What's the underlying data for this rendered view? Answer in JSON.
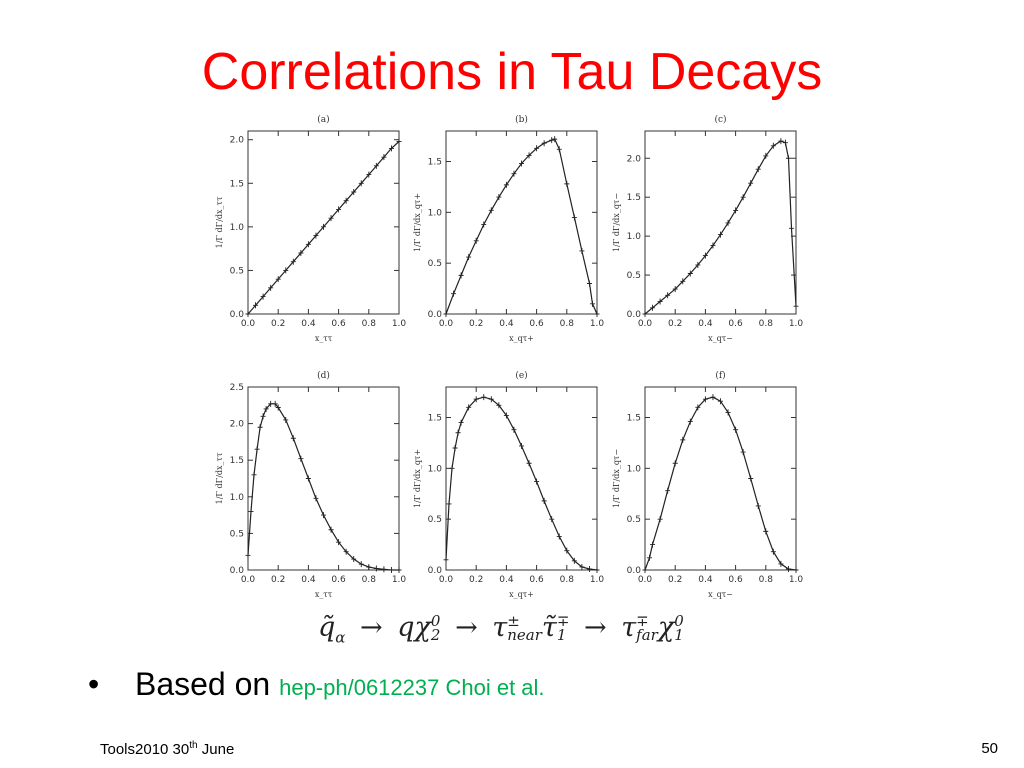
{
  "slide": {
    "title": "Correlations in Tau Decays",
    "bullet_marker": "•",
    "bullet_text": "Based on",
    "reference": "hep-ph/0612237 Choi et al.",
    "footer_prefix": "Tools2010 30",
    "footer_sup": "th",
    "footer_suffix": " June",
    "page_number": "50",
    "formula": {
      "q_tilde": "q̃",
      "alpha": "α",
      "arrow": "→",
      "q": "q",
      "chi": "χ",
      "chi2_sup": "0",
      "chi2_sub": "2",
      "tau": "τ",
      "near_sup": "±",
      "near_sub": "near",
      "stau": "τ̃",
      "stau_sup": "∓",
      "stau_sub": "1",
      "far_sup": "∓",
      "far_sub": "far",
      "chi1_sup": "0",
      "chi1_sub": "1"
    }
  },
  "chart_data": [
    {
      "type": "line",
      "panel": "(a)",
      "xlabel": "x_ττ",
      "ylabel": "1/Γ dΓ/dx_ττ",
      "xlim": [
        0,
        1.0
      ],
      "ylim": [
        0,
        2.1
      ],
      "xticks": [
        "0.0",
        "0.2",
        "0.4",
        "0.6",
        "0.8",
        "1.0"
      ],
      "yticks": [
        "0.0",
        "0.5",
        "1.0",
        "1.5",
        "2.0"
      ],
      "x": [
        0.0,
        0.05,
        0.1,
        0.15,
        0.2,
        0.25,
        0.3,
        0.35,
        0.4,
        0.45,
        0.5,
        0.55,
        0.6,
        0.65,
        0.7,
        0.75,
        0.8,
        0.85,
        0.9,
        0.95,
        1.0
      ],
      "y": [
        0.0,
        0.1,
        0.2,
        0.3,
        0.4,
        0.5,
        0.6,
        0.7,
        0.8,
        0.9,
        1.0,
        1.1,
        1.2,
        1.3,
        1.4,
        1.5,
        1.6,
        1.7,
        1.8,
        1.9,
        1.98
      ]
    },
    {
      "type": "line",
      "panel": "(b)",
      "xlabel": "x_qτ+",
      "ylabel": "1/Γ dΓ/dx_qτ+",
      "xlim": [
        0,
        1.0
      ],
      "ylim": [
        0,
        1.8
      ],
      "xticks": [
        "0.0",
        "0.2",
        "0.4",
        "0.6",
        "0.8",
        "1.0"
      ],
      "yticks": [
        "0.0",
        "0.5",
        "1.0",
        "1.5"
      ],
      "x": [
        0.0,
        0.05,
        0.1,
        0.15,
        0.2,
        0.25,
        0.3,
        0.35,
        0.4,
        0.45,
        0.5,
        0.55,
        0.6,
        0.65,
        0.7,
        0.72,
        0.75,
        0.8,
        0.85,
        0.9,
        0.95,
        0.97,
        1.0
      ],
      "y": [
        0.0,
        0.2,
        0.38,
        0.56,
        0.72,
        0.88,
        1.02,
        1.15,
        1.27,
        1.38,
        1.48,
        1.56,
        1.63,
        1.68,
        1.71,
        1.72,
        1.62,
        1.28,
        0.95,
        0.62,
        0.3,
        0.1,
        0.0
      ]
    },
    {
      "type": "line",
      "panel": "(c)",
      "xlabel": "x_qτ−",
      "ylabel": "1/Γ dΓ/dx_qτ−",
      "xlim": [
        0,
        1.0
      ],
      "ylim": [
        0,
        2.35
      ],
      "xticks": [
        "0.0",
        "0.2",
        "0.4",
        "0.6",
        "0.8",
        "1.0"
      ],
      "yticks": [
        "0.0",
        "0.5",
        "1.0",
        "1.5",
        "2.0"
      ],
      "x": [
        0.0,
        0.05,
        0.1,
        0.15,
        0.2,
        0.25,
        0.3,
        0.35,
        0.4,
        0.45,
        0.5,
        0.55,
        0.6,
        0.65,
        0.7,
        0.75,
        0.8,
        0.85,
        0.9,
        0.93,
        0.95,
        0.97,
        1.0
      ],
      "y": [
        0.0,
        0.08,
        0.16,
        0.24,
        0.32,
        0.42,
        0.52,
        0.63,
        0.75,
        0.88,
        1.02,
        1.17,
        1.33,
        1.5,
        1.68,
        1.86,
        2.03,
        2.16,
        2.22,
        2.2,
        2.0,
        1.1,
        0.1
      ]
    },
    {
      "type": "line",
      "panel": "(d)",
      "xlabel": "x_ττ",
      "ylabel": "1/Γ dΓ/dx_ττ",
      "xlim": [
        0,
        1.0
      ],
      "ylim": [
        0,
        2.5
      ],
      "xticks": [
        "0.0",
        "0.2",
        "0.4",
        "0.6",
        "0.8",
        "1.0"
      ],
      "yticks": [
        "0.0",
        "0.5",
        "1.0",
        "1.5",
        "2.0",
        "2.5"
      ],
      "x": [
        0.0,
        0.02,
        0.04,
        0.06,
        0.08,
        0.1,
        0.12,
        0.15,
        0.18,
        0.2,
        0.25,
        0.3,
        0.35,
        0.4,
        0.45,
        0.5,
        0.55,
        0.6,
        0.65,
        0.7,
        0.75,
        0.8,
        0.85,
        0.9,
        0.95,
        1.0
      ],
      "y": [
        0.2,
        0.8,
        1.3,
        1.65,
        1.95,
        2.1,
        2.2,
        2.27,
        2.27,
        2.22,
        2.05,
        1.8,
        1.52,
        1.25,
        0.98,
        0.75,
        0.55,
        0.38,
        0.25,
        0.15,
        0.08,
        0.04,
        0.02,
        0.01,
        0.0,
        0.0
      ]
    },
    {
      "type": "line",
      "panel": "(e)",
      "xlabel": "x_qτ+",
      "ylabel": "1/Γ dΓ/dx_qτ+",
      "xlim": [
        0,
        1.0
      ],
      "ylim": [
        0,
        1.8
      ],
      "xticks": [
        "0.0",
        "0.2",
        "0.4",
        "0.6",
        "0.8",
        "1.0"
      ],
      "yticks": [
        "0.0",
        "0.5",
        "1.0",
        "1.5"
      ],
      "x": [
        0.0,
        0.02,
        0.04,
        0.06,
        0.08,
        0.1,
        0.15,
        0.2,
        0.25,
        0.3,
        0.35,
        0.4,
        0.45,
        0.5,
        0.55,
        0.6,
        0.65,
        0.7,
        0.75,
        0.8,
        0.85,
        0.9,
        0.95,
        1.0
      ],
      "y": [
        0.1,
        0.65,
        1.0,
        1.2,
        1.35,
        1.45,
        1.6,
        1.68,
        1.7,
        1.68,
        1.62,
        1.52,
        1.38,
        1.22,
        1.05,
        0.87,
        0.68,
        0.5,
        0.33,
        0.19,
        0.09,
        0.03,
        0.01,
        0.0
      ]
    },
    {
      "type": "line",
      "panel": "(f)",
      "xlabel": "x_qτ−",
      "ylabel": "1/Γ dΓ/dx_qτ−",
      "xlim": [
        0,
        1.0
      ],
      "ylim": [
        0,
        1.8
      ],
      "xticks": [
        "0.0",
        "0.2",
        "0.4",
        "0.6",
        "0.8",
        "1.0"
      ],
      "yticks": [
        "0.0",
        "0.5",
        "1.0",
        "1.5"
      ],
      "x": [
        0.0,
        0.03,
        0.05,
        0.1,
        0.15,
        0.2,
        0.25,
        0.3,
        0.35,
        0.4,
        0.45,
        0.5,
        0.55,
        0.6,
        0.65,
        0.7,
        0.75,
        0.8,
        0.85,
        0.9,
        0.95,
        1.0
      ],
      "y": [
        0.0,
        0.12,
        0.25,
        0.5,
        0.78,
        1.05,
        1.28,
        1.46,
        1.6,
        1.68,
        1.7,
        1.66,
        1.55,
        1.38,
        1.16,
        0.9,
        0.63,
        0.38,
        0.18,
        0.06,
        0.01,
        0.0
      ]
    }
  ]
}
